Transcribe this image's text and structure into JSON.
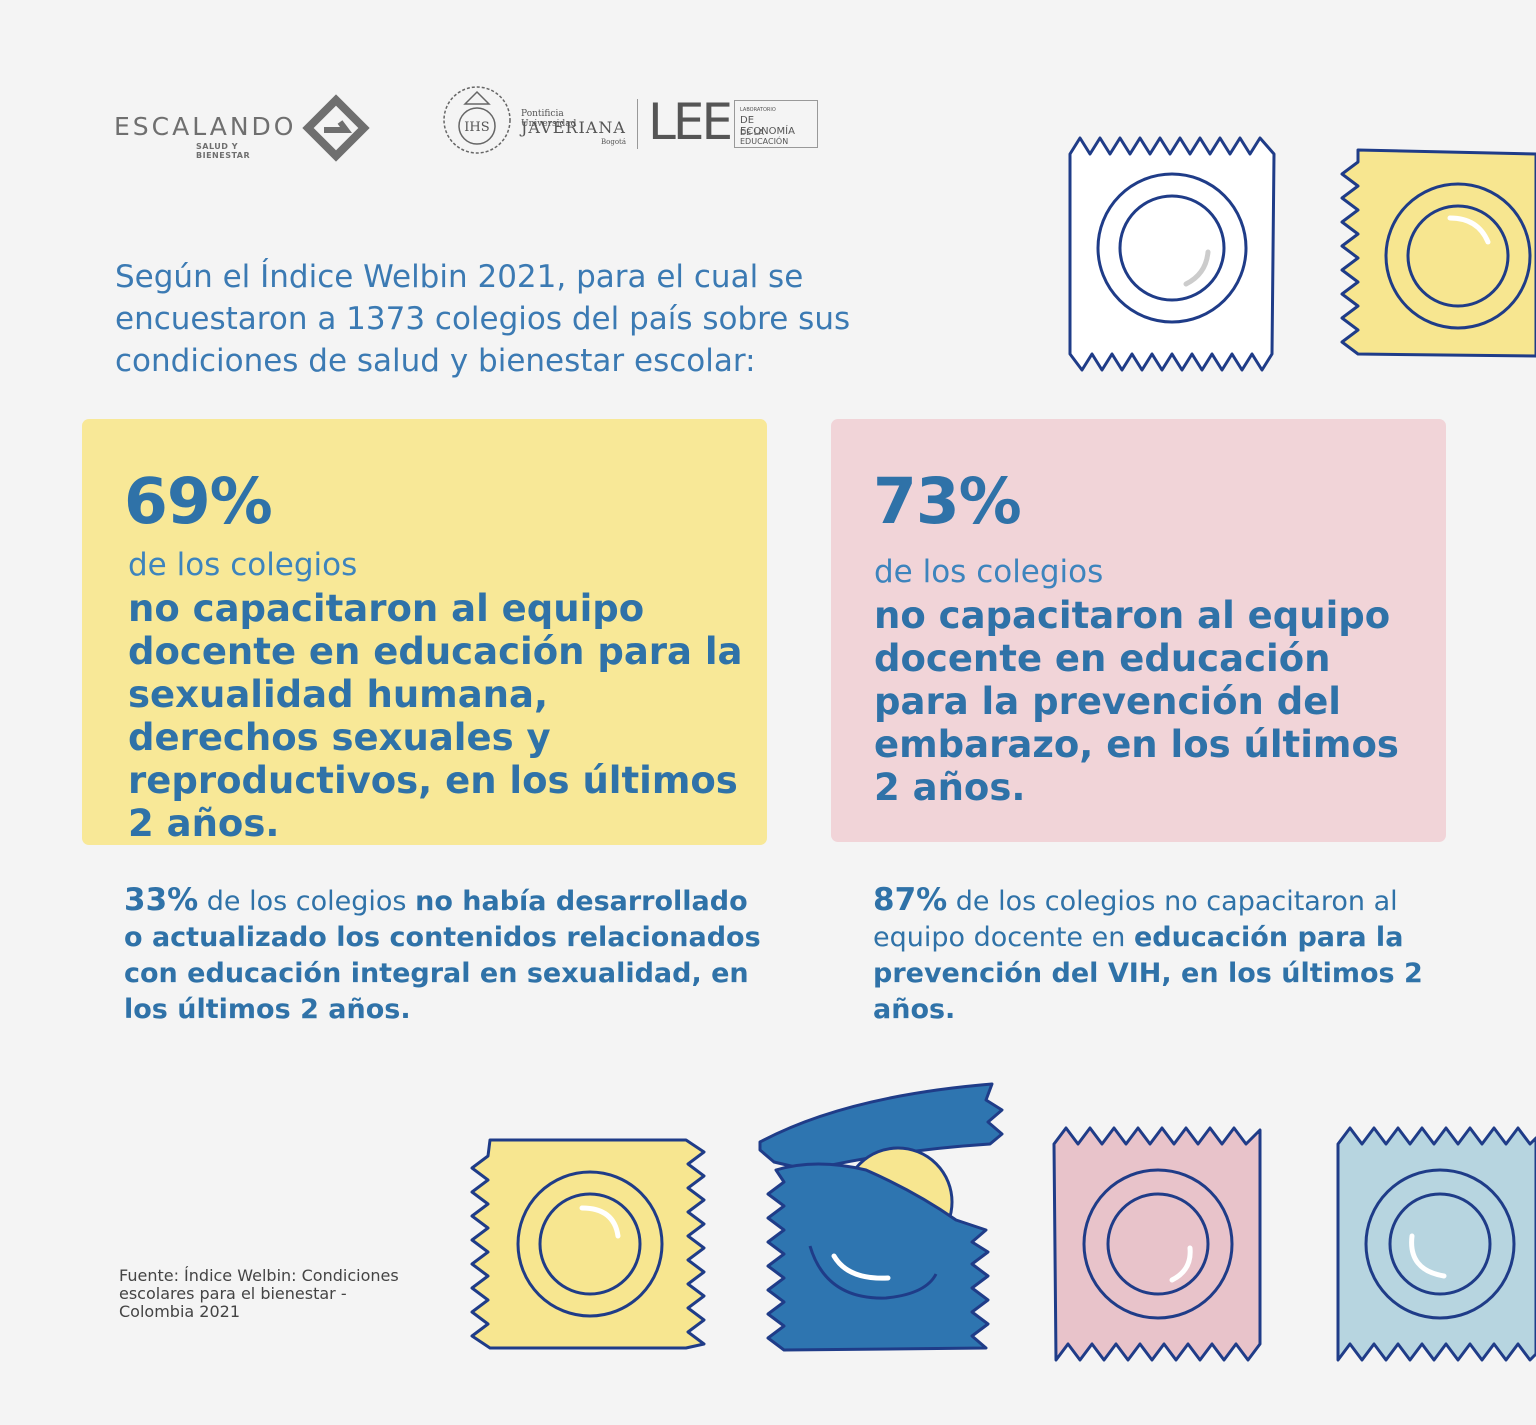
{
  "logos": {
    "escalando": "ESCALANDO",
    "escalando_sub": "SALUD Y BIENESTAR",
    "seal_letters": "IHS",
    "javeriana_small": "Pontificia Universidad",
    "javeriana": "JAVERIANA",
    "javeriana_city": "Bogotá",
    "lee": "LEE",
    "lee_line1": "LABORATORIO",
    "lee_line2": "DE ECONOMÍA",
    "lee_line3": "DE LA EDUCACIÓN"
  },
  "intro": "Según el Índice Welbin 2021, para el cual se encuestaron a 1373 colegios del país sobre sus condiciones de salud y bienestar escolar:",
  "cards": [
    {
      "percent": "69%",
      "subtitle": "de los colegios",
      "body": "no capacitaron al equipo docente en educación para la sexualidad humana, derechos sexuales y reproductivos, en los últimos 2 años.",
      "color": "#f8e897"
    },
    {
      "percent": "73%",
      "subtitle": "de los colegios",
      "body": "no capacitaron al equipo docente en educación para la prevención del embarazo, en los últimos 2 años.",
      "color": "#f1d4d8"
    }
  ],
  "stats": [
    {
      "percent": "33%",
      "text1": "de los colegios",
      "text2": "no había desarrollado o actualizado los contenidos relacionados con educación integral en sexualidad, en los últimos 2 años."
    },
    {
      "percent": "87%",
      "text1": "de los colegios no capacitaron al equipo docente en",
      "text2": "educación para la prevención del VIH, en los últimos 2 años."
    }
  ],
  "source": "Fuente: Índice Welbin: Condiciones escolares para el bienestar - Colombia 2021",
  "colors": {
    "background": "#f4f4f4",
    "text_blue": "#2f72a8",
    "outline_navy": "#1f3c88",
    "yellow": "#f7e690",
    "pink": "#e8c3ca",
    "light_blue": "#b7d5e0",
    "dark_blue": "#2e75b0"
  },
  "icons": [
    "condom-packet-white-icon",
    "condom-packet-yellow-icon",
    "condom-packet-yellow-icon",
    "condom-packet-open-blue-icon",
    "condom-packet-pink-icon",
    "condom-packet-light-blue-icon"
  ]
}
